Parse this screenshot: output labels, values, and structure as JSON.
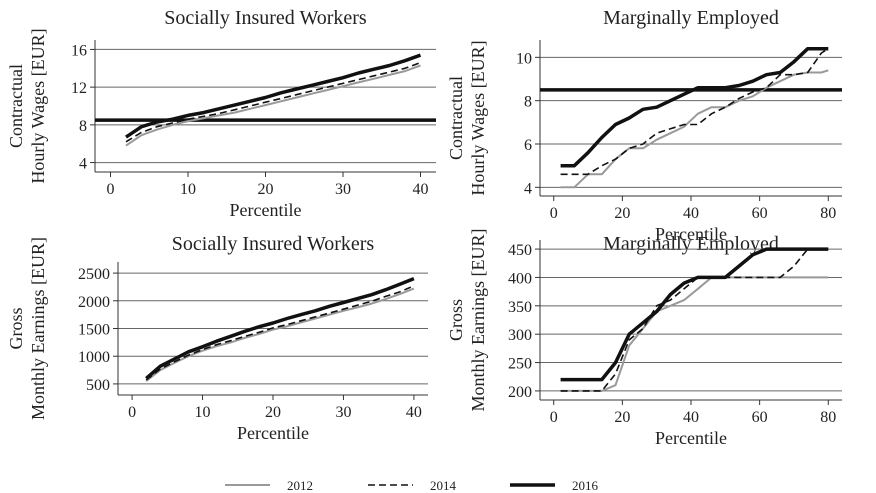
{
  "chart_data": [
    {
      "type": "line",
      "title": "Socially Insured Workers",
      "ylabel": [
        "Contractual",
        "Hourly Wages [EUR]"
      ],
      "xlabel": "Percentile",
      "x": [
        2,
        4,
        6,
        8,
        10,
        12,
        14,
        16,
        18,
        20,
        22,
        24,
        26,
        28,
        30,
        32,
        34,
        36,
        38,
        40
      ],
      "xlim": [
        -2,
        42
      ],
      "xticks": [
        0,
        10,
        20,
        30,
        40
      ],
      "ylim": [
        3,
        17
      ],
      "yticks": [
        4,
        8,
        12,
        16
      ],
      "grid": true,
      "hline": 8.5,
      "series": [
        {
          "name": "2012",
          "color": "#999999",
          "values": [
            5.8,
            6.9,
            7.5,
            8.0,
            8.4,
            8.7,
            9.0,
            9.3,
            9.7,
            10.1,
            10.5,
            10.9,
            11.3,
            11.7,
            12.1,
            12.5,
            12.9,
            13.3,
            13.7,
            14.3
          ]
        },
        {
          "name": "2014",
          "color": "#111111",
          "values": [
            6.2,
            7.2,
            7.8,
            8.2,
            8.6,
            8.9,
            9.2,
            9.6,
            10.0,
            10.4,
            10.8,
            11.2,
            11.6,
            12.0,
            12.4,
            12.8,
            13.2,
            13.6,
            14.0,
            14.6
          ]
        },
        {
          "name": "2016",
          "color": "#111111",
          "values": [
            6.7,
            7.8,
            8.3,
            8.6,
            9.0,
            9.3,
            9.7,
            10.1,
            10.5,
            10.9,
            11.4,
            11.8,
            12.2,
            12.6,
            13.0,
            13.5,
            13.9,
            14.3,
            14.8,
            15.4
          ]
        }
      ]
    },
    {
      "type": "line",
      "title": "Marginally Employed",
      "ylabel": [
        "Contractual",
        "Hourly Wages [EUR]"
      ],
      "xlabel": "Percentile",
      "x": [
        2,
        6,
        10,
        14,
        18,
        22,
        26,
        30,
        34,
        38,
        42,
        46,
        50,
        54,
        58,
        62,
        66,
        70,
        74,
        78,
        80
      ],
      "xlim": [
        -4,
        84
      ],
      "xticks": [
        0,
        20,
        40,
        60,
        80
      ],
      "ylim": [
        3.6,
        10.8
      ],
      "yticks": [
        4,
        6,
        8,
        10
      ],
      "grid": true,
      "hline": 8.5,
      "series": [
        {
          "name": "2012",
          "color": "#999999",
          "values": [
            4.0,
            4.0,
            4.6,
            4.6,
            5.3,
            5.8,
            5.8,
            6.2,
            6.5,
            6.8,
            7.4,
            7.7,
            7.7,
            8.0,
            8.2,
            8.6,
            8.9,
            9.2,
            9.3,
            9.3,
            9.4
          ]
        },
        {
          "name": "2014",
          "color": "#111111",
          "values": [
            4.6,
            4.6,
            4.6,
            5.0,
            5.3,
            5.8,
            6.0,
            6.5,
            6.7,
            6.9,
            6.9,
            7.4,
            7.7,
            8.1,
            8.4,
            8.6,
            9.2,
            9.2,
            9.3,
            10.2,
            10.4
          ]
        },
        {
          "name": "2016",
          "color": "#111111",
          "values": [
            5.0,
            5.0,
            5.6,
            6.3,
            6.9,
            7.2,
            7.6,
            7.7,
            8.0,
            8.3,
            8.6,
            8.6,
            8.6,
            8.7,
            8.9,
            9.2,
            9.3,
            9.8,
            10.4,
            10.4,
            10.4
          ]
        }
      ]
    },
    {
      "type": "line",
      "title": "Socially Insured Workers",
      "ylabel": [
        "Gross",
        "Monthly Earnings [EUR]"
      ],
      "xlabel": "Percentile",
      "x": [
        2,
        4,
        6,
        8,
        10,
        12,
        14,
        16,
        18,
        20,
        22,
        24,
        26,
        28,
        30,
        32,
        34,
        36,
        38,
        40
      ],
      "xlim": [
        -2,
        42
      ],
      "xticks": [
        0,
        10,
        20,
        30,
        40
      ],
      "ylim": [
        300,
        2700
      ],
      "yticks": [
        500,
        1000,
        1500,
        2000,
        2500
      ],
      "grid": true,
      "series": [
        {
          "name": "2012",
          "color": "#999999",
          "values": [
            550,
            750,
            880,
            1000,
            1100,
            1180,
            1250,
            1330,
            1400,
            1480,
            1540,
            1610,
            1680,
            1750,
            1820,
            1880,
            1950,
            2030,
            2120,
            2220
          ]
        },
        {
          "name": "2014",
          "color": "#111111",
          "values": [
            570,
            770,
            900,
            1020,
            1120,
            1210,
            1280,
            1360,
            1430,
            1510,
            1570,
            1640,
            1710,
            1780,
            1850,
            1920,
            1990,
            2080,
            2160,
            2270
          ]
        },
        {
          "name": "2016",
          "color": "#111111",
          "values": [
            600,
            820,
            950,
            1080,
            1170,
            1270,
            1360,
            1450,
            1530,
            1600,
            1680,
            1750,
            1820,
            1900,
            1970,
            2040,
            2110,
            2200,
            2300,
            2400
          ]
        }
      ]
    },
    {
      "type": "line",
      "title": "Marginally Employed",
      "ylabel": [
        "Gross",
        "Monthly Earnings [EUR]"
      ],
      "xlabel": "Percentile",
      "x": [
        2,
        6,
        10,
        14,
        18,
        22,
        26,
        30,
        34,
        38,
        42,
        46,
        50,
        54,
        58,
        62,
        66,
        70,
        74,
        78,
        80
      ],
      "xlim": [
        -4,
        84
      ],
      "xticks": [
        0,
        20,
        40,
        60,
        80
      ],
      "ylim": [
        184,
        466
      ],
      "yticks": [
        200,
        250,
        300,
        350,
        400,
        450
      ],
      "grid": true,
      "series": [
        {
          "name": "2012",
          "color": "#999999",
          "values": [
            200,
            200,
            200,
            200,
            210,
            280,
            310,
            340,
            350,
            360,
            380,
            400,
            400,
            400,
            400,
            400,
            400,
            400,
            400,
            400,
            400
          ]
        },
        {
          "name": "2014",
          "color": "#111111",
          "values": [
            200,
            200,
            200,
            200,
            230,
            290,
            310,
            350,
            360,
            380,
            400,
            400,
            400,
            400,
            400,
            400,
            400,
            420,
            450,
            450,
            450
          ]
        },
        {
          "name": "2016",
          "color": "#111111",
          "values": [
            220,
            220,
            220,
            220,
            250,
            300,
            320,
            340,
            370,
            390,
            400,
            400,
            400,
            420,
            440,
            450,
            450,
            450,
            450,
            450,
            450
          ]
        }
      ]
    }
  ]
}
